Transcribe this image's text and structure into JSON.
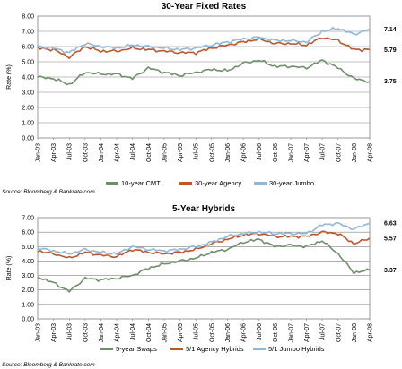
{
  "chart_data": [
    {
      "type": "line",
      "title": "30-Year Fixed Rates",
      "ylabel": "Rate (%)",
      "xlabel": "",
      "ylim": [
        0,
        8
      ],
      "yticks": [
        "0.00",
        "1.00",
        "2.00",
        "3.00",
        "4.00",
        "5.00",
        "6.00",
        "7.00",
        "8.00"
      ],
      "grid": true,
      "legend": "bottom",
      "source": "Source: Bloomberg & Bankrate.com",
      "x_ticks": [
        "Jan-03",
        "Apr-03",
        "Jul-03",
        "Oct-03",
        "Jan-04",
        "Apr-04",
        "Jul-04",
        "Oct-04",
        "Jan-05",
        "Apr-05",
        "Jul-05",
        "Oct-05",
        "Jan-06",
        "Apr-06",
        "Jul-06",
        "Oct-06",
        "Jan-07",
        "Apr-07",
        "Jul-07",
        "Oct-07",
        "Jan-08",
        "Apr-08"
      ],
      "series": [
        {
          "name": "10-year CMT",
          "color": "#6f8f6a",
          "end_label": "3.75",
          "values": [
            4.0,
            3.9,
            3.5,
            4.3,
            4.2,
            4.2,
            3.9,
            4.6,
            4.3,
            4.1,
            4.3,
            4.5,
            4.4,
            4.9,
            5.1,
            4.7,
            4.7,
            4.6,
            5.1,
            4.6,
            3.9,
            3.7
          ]
        },
        {
          "name": "30-year Agency",
          "color": "#c0552b",
          "end_label": "5.79",
          "values": [
            5.9,
            5.8,
            5.3,
            6.0,
            5.7,
            5.7,
            5.9,
            5.8,
            5.7,
            5.6,
            5.6,
            5.9,
            6.1,
            6.3,
            6.5,
            6.2,
            6.2,
            6.1,
            6.6,
            6.4,
            5.8,
            5.8
          ]
        },
        {
          "name": "30-year Jumbo",
          "color": "#8fb8d8",
          "end_label": "7.14",
          "values": [
            6.0,
            5.9,
            5.6,
            6.2,
            6.0,
            5.9,
            6.1,
            6.0,
            5.9,
            5.8,
            5.9,
            6.1,
            6.3,
            6.5,
            6.6,
            6.4,
            6.4,
            6.3,
            7.0,
            7.2,
            6.8,
            7.14
          ]
        }
      ]
    },
    {
      "type": "line",
      "title": "5-Year Hybrids",
      "ylabel": "Rate (%)",
      "xlabel": "",
      "ylim": [
        0,
        7
      ],
      "yticks": [
        "0.00",
        "1.00",
        "2.00",
        "3.00",
        "4.00",
        "5.00",
        "6.00",
        "7.00"
      ],
      "grid": true,
      "legend": "bottom",
      "source": "Source: Bloomberg & Bankrate.com",
      "x_ticks": [
        "Jan-03",
        "Apr-03",
        "Jul-03",
        "Oct-03",
        "Jan-04",
        "Apr-04",
        "Jul-04",
        "Oct-04",
        "Jan-05",
        "Apr-05",
        "Jul-05",
        "Oct-05",
        "Jan-06",
        "Apr-06",
        "Jul-06",
        "Oct-06",
        "Jan-07",
        "Apr-07",
        "Jul-07",
        "Oct-07",
        "Jan-08",
        "Apr-08"
      ],
      "series": [
        {
          "name": "5-year Swaps",
          "color": "#6f8f6a",
          "end_label": "3.37",
          "values": [
            2.9,
            2.5,
            1.9,
            2.8,
            2.7,
            2.8,
            3.0,
            3.5,
            3.8,
            4.0,
            4.2,
            4.6,
            4.8,
            5.3,
            5.5,
            5.0,
            5.1,
            5.0,
            5.4,
            4.5,
            3.2,
            3.37
          ]
        },
        {
          "name": "5/1 Agency Hybrids",
          "color": "#c0552b",
          "end_label": "5.57",
          "values": [
            4.7,
            4.5,
            4.2,
            4.6,
            4.4,
            4.3,
            4.8,
            4.6,
            4.5,
            4.6,
            4.8,
            5.2,
            5.5,
            5.8,
            5.9,
            5.7,
            5.7,
            5.7,
            6.0,
            5.9,
            5.2,
            5.57
          ]
        },
        {
          "name": "5/1 Jumbo Hybrids",
          "color": "#8fb8d8",
          "end_label": "6.63",
          "values": [
            4.9,
            4.7,
            4.5,
            4.8,
            4.6,
            4.5,
            5.0,
            4.8,
            4.7,
            4.8,
            5.0,
            5.3,
            5.7,
            5.9,
            6.0,
            5.9,
            5.9,
            5.9,
            6.5,
            6.6,
            6.2,
            6.63
          ]
        }
      ]
    }
  ]
}
